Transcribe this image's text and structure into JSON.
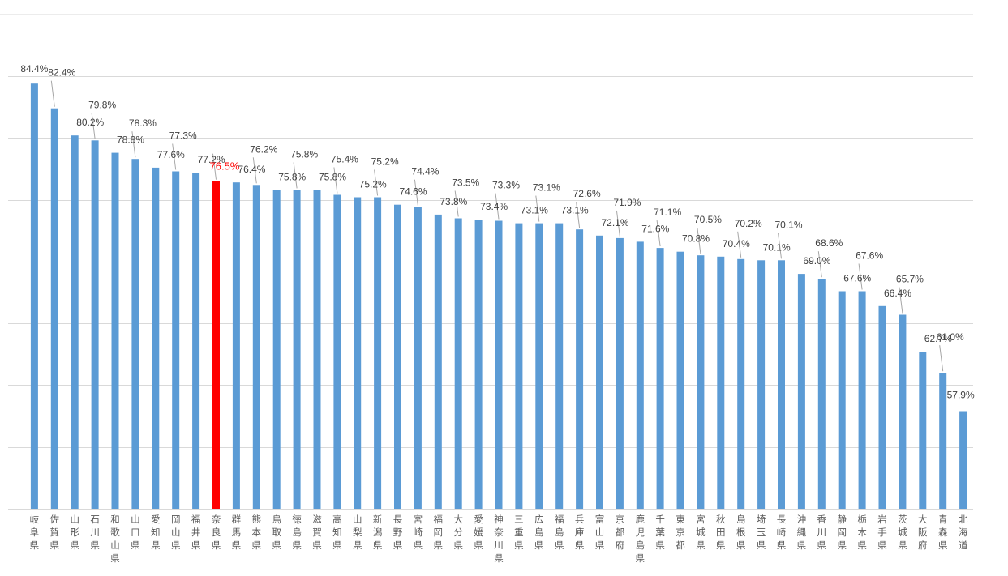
{
  "chart_data": {
    "type": "bar",
    "title": "",
    "xlabel": "",
    "ylabel": "",
    "ylim": [
      50,
      85
    ],
    "grid": true,
    "legend": "none",
    "highlight_category": "奈良県",
    "colors": {
      "bar": "#5b9bd5",
      "highlight": "#ff0000",
      "grid": "#d9d9d9",
      "text": "#404040"
    },
    "categories": [
      "岐阜県",
      "佐賀県",
      "山形県",
      "石川県",
      "和歌山県",
      "山口県",
      "愛知県",
      "岡山県",
      "福井県",
      "奈良県",
      "群馬県",
      "熊本県",
      "鳥取県",
      "徳島県",
      "滋賀県",
      "高知県",
      "山梨県",
      "新潟県",
      "長野県",
      "宮崎県",
      "福岡県",
      "大分県",
      "愛媛県",
      "神奈川県",
      "三重県",
      "広島県",
      "福島県",
      "兵庫県",
      "富山県",
      "京都府",
      "鹿児島県",
      "千葉県",
      "東京都",
      "宮城県",
      "秋田県",
      "島根県",
      "埼玉県",
      "長崎県",
      "沖縄県",
      "香川県",
      "静岡県",
      "栃木県",
      "岩手県",
      "茨城県",
      "大阪府",
      "青森県",
      "北海道"
    ],
    "values": [
      84.4,
      82.4,
      80.2,
      79.8,
      78.8,
      78.3,
      77.6,
      77.3,
      77.2,
      76.5,
      76.4,
      76.2,
      75.8,
      75.8,
      75.8,
      75.4,
      75.2,
      75.2,
      74.6,
      74.4,
      73.8,
      73.5,
      73.4,
      73.3,
      73.1,
      73.1,
      73.1,
      72.6,
      72.1,
      71.9,
      71.6,
      71.1,
      70.8,
      70.5,
      70.4,
      70.2,
      70.1,
      70.1,
      69.0,
      68.6,
      67.6,
      67.6,
      66.4,
      65.7,
      62.7,
      61.0,
      57.9
    ],
    "data_labels": [
      "84.4%",
      "82.4%",
      "80.2%",
      "79.8%",
      "78.8%",
      "78.3%",
      "77.6%",
      "77.3%",
      "77.2%",
      "76.5%",
      "76.4%",
      "76.2%",
      "75.8%",
      "75.8%",
      "75.8%",
      "75.4%",
      "75.2%",
      "75.2%",
      "74.6%",
      "74.4%",
      "73.8%",
      "73.5%",
      "73.4%",
      "73.3%",
      "73.1%",
      "73.1%",
      "73.1%",
      "72.6%",
      "72.1%",
      "71.9%",
      "71.6%",
      "71.1%",
      "70.8%",
      "70.5%",
      "70.4%",
      "70.2%",
      "70.1%",
      "70.1%",
      "69.0%",
      "68.6%",
      "67.6%",
      "67.6%",
      "66.4%",
      "65.7%",
      "62.7%",
      "61.0%",
      "57.9%"
    ]
  }
}
